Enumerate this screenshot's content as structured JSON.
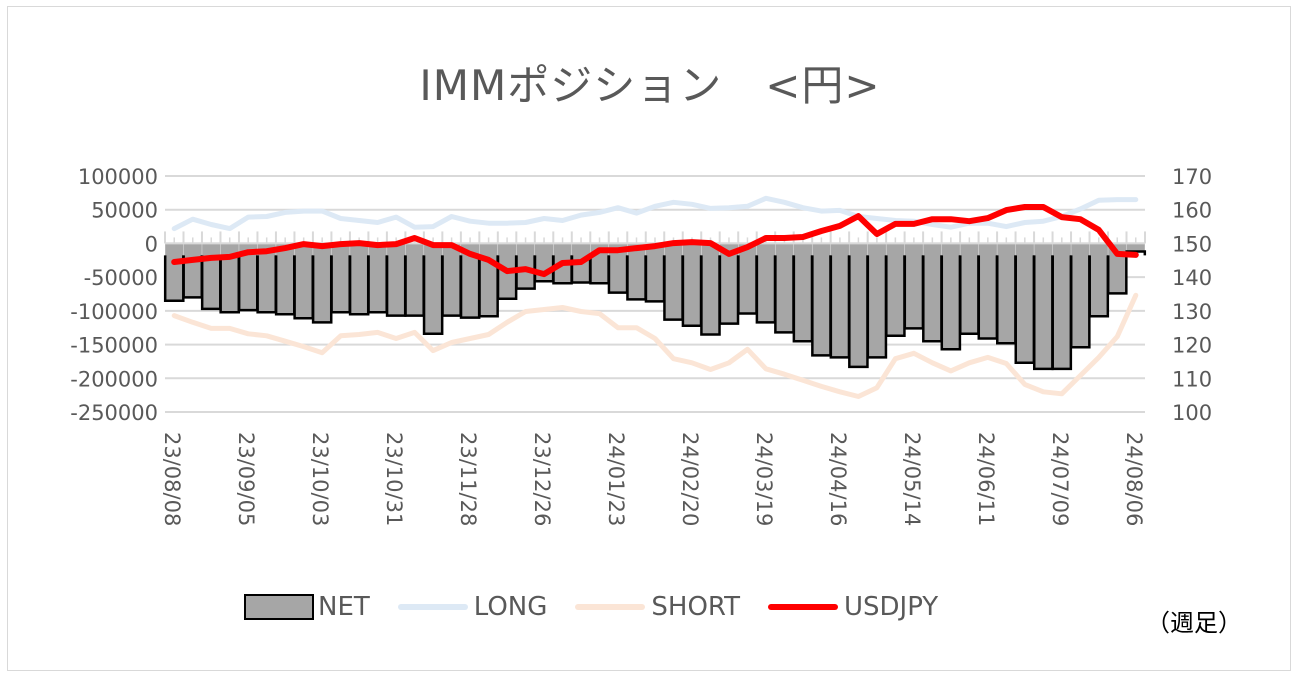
{
  "chart_data": {
    "type": "bar+line",
    "title": "IMMポジション　<円>",
    "note": "（週足）",
    "left_axis": {
      "min": -250000,
      "max": 100000,
      "step": 50000,
      "ticks": [
        "100000",
        "50000",
        "0",
        "-50000",
        "-100000",
        "-150000",
        "-200000",
        "-250000"
      ]
    },
    "right_axis": {
      "min": 100,
      "max": 170,
      "step": 10,
      "ticks": [
        "170",
        "160",
        "150",
        "140",
        "130",
        "120",
        "110",
        "100"
      ]
    },
    "x_tick_labels": [
      "23/08/08",
      "23/09/05",
      "23/10/03",
      "23/10/31",
      "23/11/28",
      "23/12/26",
      "24/01/23",
      "24/02/20",
      "24/03/19",
      "24/04/16",
      "24/05/14",
      "24/06/11",
      "24/07/09",
      "24/08/06"
    ],
    "x_label_every": 4,
    "grid": true,
    "legend_position": "bottom",
    "series": [
      {
        "name": "NET",
        "type": "bar",
        "axis": "left",
        "color": "#a6a6a6",
        "stroke": "#000000",
        "values": [
          -85000,
          -80000,
          -97000,
          -102000,
          -99000,
          -102000,
          -105000,
          -111000,
          -117000,
          -102000,
          -105000,
          -102000,
          -107000,
          -107000,
          -134000,
          -107000,
          -110000,
          -108000,
          -82000,
          -67000,
          -56000,
          -59000,
          -58000,
          -59000,
          -73000,
          -83000,
          -86000,
          -113000,
          -122000,
          -135000,
          -119000,
          -104000,
          -117000,
          -132000,
          -145000,
          -166000,
          -169000,
          -183000,
          -169000,
          -137000,
          -126000,
          -145000,
          -157000,
          -134000,
          -141000,
          -148000,
          -177000,
          -186000,
          -186000,
          -154000,
          -108000,
          -74000,
          -12000
        ]
      },
      {
        "name": "LONG",
        "type": "line",
        "axis": "left",
        "color": "#dde9f5",
        "values": [
          22000,
          36000,
          28000,
          22000,
          39000,
          40000,
          46000,
          48000,
          48000,
          37000,
          34000,
          31000,
          39000,
          24000,
          25000,
          40000,
          33000,
          30000,
          30000,
          31000,
          37000,
          34000,
          42000,
          46000,
          53000,
          45000,
          55000,
          61000,
          58000,
          52000,
          53000,
          55000,
          67000,
          61000,
          53000,
          48000,
          49000,
          40000,
          37000,
          34000,
          33000,
          28000,
          24000,
          30000,
          30000,
          25000,
          31000,
          33000,
          40000,
          51000,
          64000,
          65000,
          65000
        ]
      },
      {
        "name": "SHORT",
        "type": "line",
        "axis": "left",
        "color": "#fbe5d6",
        "values": [
          -107000,
          -117000,
          -126000,
          -126000,
          -134000,
          -137000,
          -145000,
          -153000,
          -162000,
          -137000,
          -135000,
          -132000,
          -141000,
          -132000,
          -159000,
          -147000,
          -141000,
          -135000,
          -117000,
          -101000,
          -98000,
          -95000,
          -101000,
          -104000,
          -125000,
          -125000,
          -141000,
          -171000,
          -177000,
          -187000,
          -177000,
          -157000,
          -186000,
          -194000,
          -203000,
          -212000,
          -220000,
          -227000,
          -214000,
          -171000,
          -163000,
          -177000,
          -189000,
          -177000,
          -169000,
          -178000,
          -209000,
          -220000,
          -223000,
          -196000,
          -169000,
          -138000,
          -77000
        ]
      },
      {
        "name": "USDJPY",
        "type": "line",
        "axis": "right",
        "color": "#ff0000",
        "values": [
          144.5,
          145.1,
          145.7,
          146.0,
          147.4,
          147.7,
          148.6,
          149.8,
          149.2,
          149.8,
          150.1,
          149.5,
          149.8,
          151.6,
          149.5,
          149.5,
          146.9,
          145.1,
          141.8,
          142.4,
          140.9,
          144.2,
          144.5,
          148.0,
          148.0,
          148.6,
          149.2,
          150.1,
          150.4,
          150.1,
          146.9,
          148.9,
          151.6,
          151.6,
          151.9,
          153.7,
          155.2,
          158.1,
          152.8,
          155.8,
          155.8,
          157.2,
          157.2,
          156.6,
          157.5,
          159.9,
          160.8,
          160.8,
          157.8,
          157.2,
          154.0,
          146.9,
          146.6
        ]
      }
    ]
  }
}
